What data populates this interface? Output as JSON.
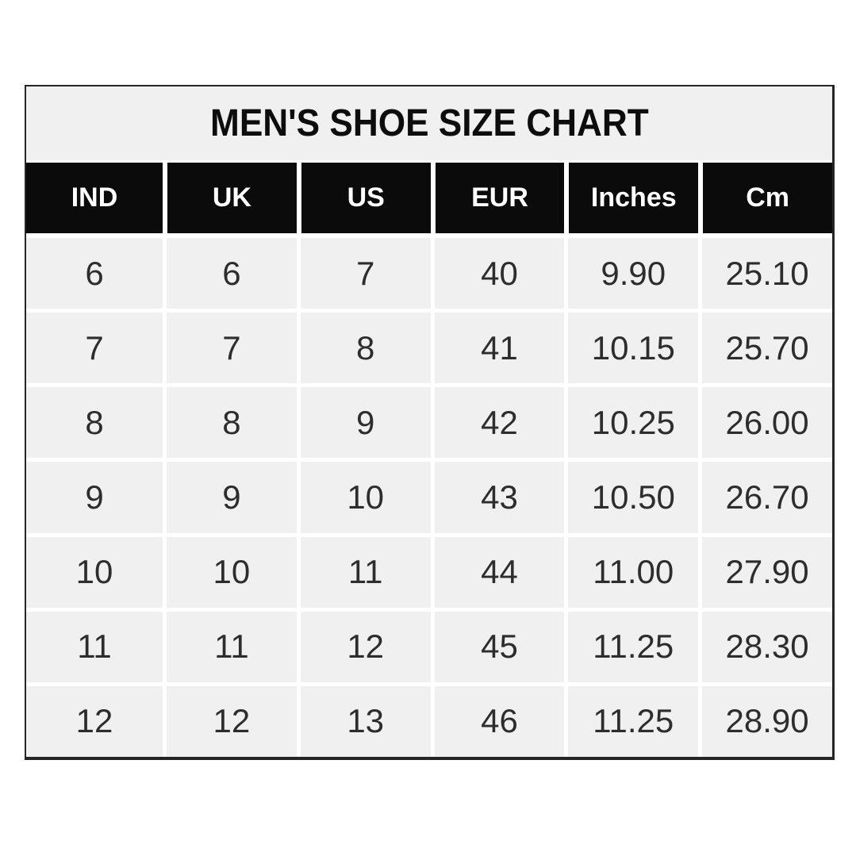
{
  "title": "MEN'S SHOE SIZE CHART",
  "colors": {
    "page_background": "#ffffff",
    "cell_background": "#f1f0f1",
    "header_background": "#0b0b0b",
    "header_text": "#ffffff",
    "body_text": "#2e2d2e",
    "border": "#252525",
    "gridline": "#ffffff"
  },
  "chart_data": {
    "type": "table",
    "title": "MEN'S SHOE SIZE CHART",
    "columns": [
      "IND",
      "UK",
      "US",
      "EUR",
      "Inches",
      "Cm"
    ],
    "rows": [
      [
        "6",
        "6",
        "7",
        "40",
        "9.90",
        "25.10"
      ],
      [
        "7",
        "7",
        "8",
        "41",
        "10.15",
        "25.70"
      ],
      [
        "8",
        "8",
        "9",
        "42",
        "10.25",
        "26.00"
      ],
      [
        "9",
        "9",
        "10",
        "43",
        "10.50",
        "26.70"
      ],
      [
        "10",
        "10",
        "11",
        "44",
        "11.00",
        "27.90"
      ],
      [
        "11",
        "11",
        "12",
        "45",
        "11.25",
        "28.30"
      ],
      [
        "12",
        "12",
        "13",
        "46",
        "11.25",
        "28.90"
      ]
    ],
    "layout": {
      "grid": "on",
      "header_style": "black-bar",
      "title_position": "top-center"
    }
  }
}
